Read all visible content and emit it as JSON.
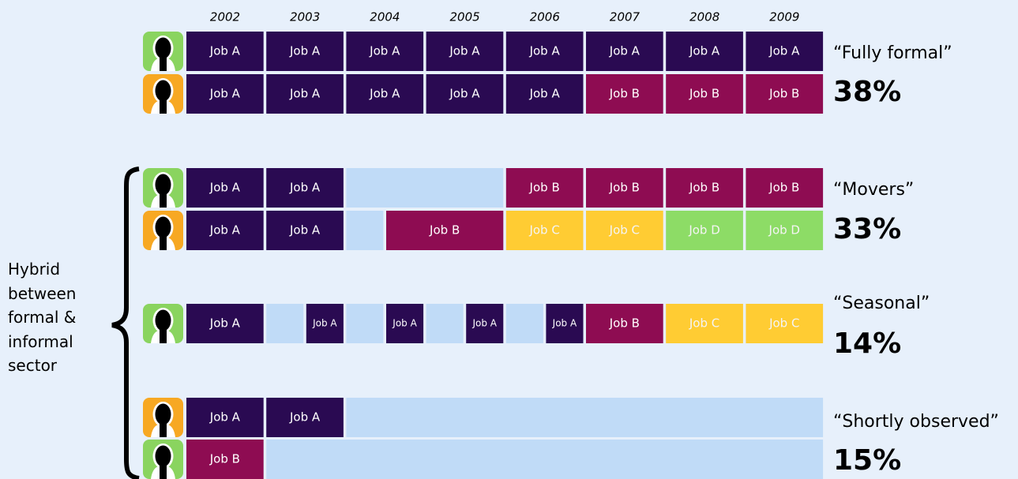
{
  "years": [
    "2002",
    "2003",
    "2004",
    "2005",
    "2006",
    "2007",
    "2008",
    "2009"
  ],
  "side_label": "Hybrid between formal & informal sector",
  "groups": [
    {
      "name": "“Fully formal”",
      "share": "38%",
      "rows": [
        {
          "avatar": "#8ad45f",
          "segments": [
            {
              "label": "Job A",
              "color": "#2a0a52"
            },
            {
              "label": "Job A",
              "color": "#2a0a52"
            },
            {
              "label": "Job A",
              "color": "#2a0a52"
            },
            {
              "label": "Job A",
              "color": "#2a0a52"
            },
            {
              "label": "Job A",
              "color": "#2a0a52"
            },
            {
              "label": "Job A",
              "color": "#2a0a52"
            },
            {
              "label": "Job A",
              "color": "#2a0a52"
            },
            {
              "label": "Job A",
              "color": "#2a0a52"
            }
          ]
        },
        {
          "avatar": "#f7a823",
          "segments": [
            {
              "label": "Job A",
              "color": "#2a0a52"
            },
            {
              "label": "Job A",
              "color": "#2a0a52"
            },
            {
              "label": "Job A",
              "color": "#2a0a52"
            },
            {
              "label": "Job A",
              "color": "#2a0a52"
            },
            {
              "label": "Job A",
              "color": "#2a0a52"
            },
            {
              "label": "Job B",
              "color": "#8e0c52"
            },
            {
              "label": "Job B",
              "color": "#8e0c52"
            },
            {
              "label": "Job B",
              "color": "#8e0c52"
            }
          ]
        }
      ]
    },
    {
      "name": "“Movers”",
      "share": "33%",
      "rows": [
        {
          "avatar": "#8ad45f",
          "segments": [
            {
              "label": "Job A",
              "color": "#2a0a52"
            },
            {
              "label": "Job A",
              "color": "#2a0a52"
            },
            {
              "color": "#c0dbf7"
            },
            {
              "label": "Job B",
              "color": "#8e0c52"
            },
            {
              "label": "Job B",
              "color": "#8e0c52"
            },
            {
              "label": "Job B",
              "color": "#8e0c52"
            },
            {
              "label": "Job B",
              "color": "#8e0c52"
            }
          ]
        },
        {
          "avatar": "#f7a823",
          "segments": [
            {
              "label": "Job A",
              "color": "#2a0a52"
            },
            {
              "label": "Job A",
              "color": "#2a0a52"
            },
            {
              "color": "#c0dbf7"
            },
            {
              "label": "Job B",
              "color": "#8e0c52"
            },
            {
              "label": "Job C",
              "color": "#ffcc33"
            },
            {
              "label": "Job C",
              "color": "#ffcc33"
            },
            {
              "label": "Job D",
              "color": "#8ddc66"
            },
            {
              "label": "Job D",
              "color": "#8ddc66"
            }
          ]
        }
      ]
    },
    {
      "name": "“Seasonal”",
      "share": "14%",
      "rows": [
        {
          "avatar": "#8ad45f",
          "segments": [
            {
              "label": "Job A",
              "color": "#2a0a52"
            },
            {
              "color": "#c0dbf7"
            },
            {
              "label": "Job A",
              "color": "#2a0a52"
            },
            {
              "color": "#c0dbf7"
            },
            {
              "label": "Job A",
              "color": "#2a0a52"
            },
            {
              "color": "#c0dbf7"
            },
            {
              "label": "Job A",
              "color": "#2a0a52"
            },
            {
              "color": "#c0dbf7"
            },
            {
              "label": "Job A",
              "color": "#2a0a52"
            },
            {
              "label": "Job B",
              "color": "#8e0c52"
            },
            {
              "label": "Job C",
              "color": "#ffcc33"
            },
            {
              "label": "Job C",
              "color": "#ffcc33"
            }
          ]
        }
      ]
    },
    {
      "name": "“Shortly observed”",
      "share": "15%",
      "rows": [
        {
          "avatar": "#f7a823",
          "segments": [
            {
              "label": "Job A",
              "color": "#2a0a52"
            },
            {
              "label": "Job A",
              "color": "#2a0a52"
            },
            {
              "color": "#c0dbf7"
            }
          ]
        },
        {
          "avatar": "#8ad45f",
          "segments": [
            {
              "label": "Job B",
              "color": "#8e0c52"
            },
            {
              "color": "#c0dbf7"
            }
          ]
        }
      ]
    }
  ]
}
